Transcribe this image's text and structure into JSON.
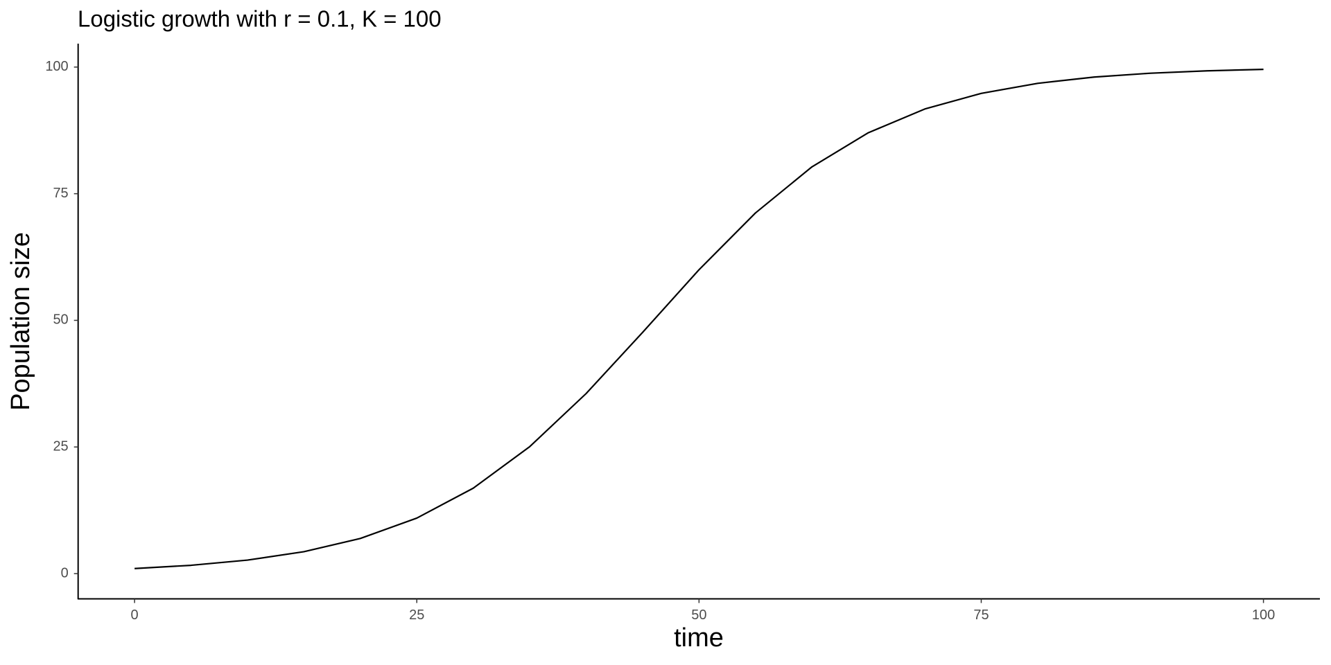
{
  "chart_data": {
    "type": "line",
    "title": "Logistic growth with r = 0.1, K = 100",
    "x_label": "time",
    "y_label": "Population size",
    "x": [
      0,
      5,
      10,
      15,
      20,
      25,
      30,
      35,
      40,
      45,
      50,
      55,
      60,
      65,
      70,
      75,
      80,
      85,
      90,
      95,
      100
    ],
    "values": [
      1.0,
      1.64,
      2.67,
      4.33,
      6.94,
      10.96,
      16.87,
      25.06,
      35.55,
      47.62,
      59.99,
      71.2,
      80.3,
      87.04,
      91.72,
      94.81,
      96.79,
      98.03,
      98.79,
      99.26,
      99.55
    ],
    "color": "#000000",
    "xlim": [
      -5,
      105
    ],
    "ylim": [
      -4.98,
      104.53
    ],
    "xticks": [
      0,
      25,
      50,
      75,
      100
    ],
    "yticks": [
      0,
      25,
      50,
      75,
      100
    ],
    "grid": false
  }
}
